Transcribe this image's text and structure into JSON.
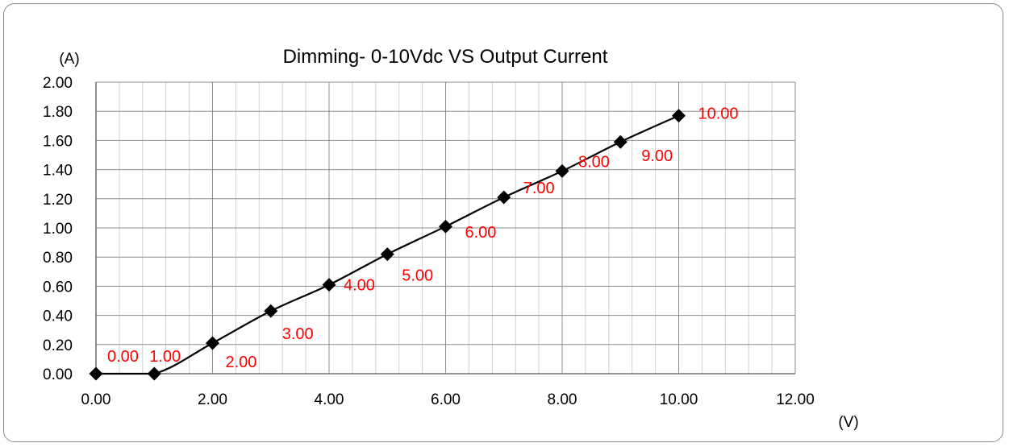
{
  "chart_data": {
    "type": "line",
    "title": "Dimming- 0-10Vdc VS Output Current",
    "xlabel": "(V)",
    "ylabel": "(A)",
    "xlim": [
      0,
      12
    ],
    "ylim": [
      0,
      2
    ],
    "x_major_ticks": [
      0,
      2,
      4,
      6,
      8,
      10,
      12
    ],
    "x_tick_labels": [
      "0.00",
      "2.00",
      "4.00",
      "6.00",
      "8.00",
      "10.00",
      "12.00"
    ],
    "y_major_ticks": [
      0,
      0.2,
      0.4,
      0.6,
      0.8,
      1.0,
      1.2,
      1.4,
      1.6,
      1.8,
      2.0
    ],
    "y_tick_labels": [
      "0.00",
      "0.20",
      "0.40",
      "0.60",
      "0.80",
      "1.00",
      "1.20",
      "1.40",
      "1.60",
      "1.80",
      "2.00"
    ],
    "x_minor_step": 0.4,
    "y_minor_step": 0.2,
    "grid": true,
    "legend": "none",
    "marker": "diamond",
    "smooth": true,
    "series": [
      {
        "x": [
          0,
          1,
          2,
          3,
          4,
          5,
          6,
          7,
          8,
          9,
          10
        ],
        "y": [
          0.0,
          0.0,
          0.21,
          0.43,
          0.61,
          0.82,
          1.01,
          1.21,
          1.39,
          1.59,
          1.77
        ],
        "data_labels": [
          "0.00",
          "1.00",
          "2.00",
          "3.00",
          "4.00",
          "5.00",
          "6.00",
          "7.00",
          "8.00",
          "9.00",
          "10.00"
        ]
      }
    ],
    "colors": {
      "line": "#000000",
      "marker": "#000000",
      "data_label": "#ff0000",
      "major_grid": "#8c8c8c",
      "minor_grid": "#d0d0d0",
      "frame": "#8c8c8c"
    }
  }
}
